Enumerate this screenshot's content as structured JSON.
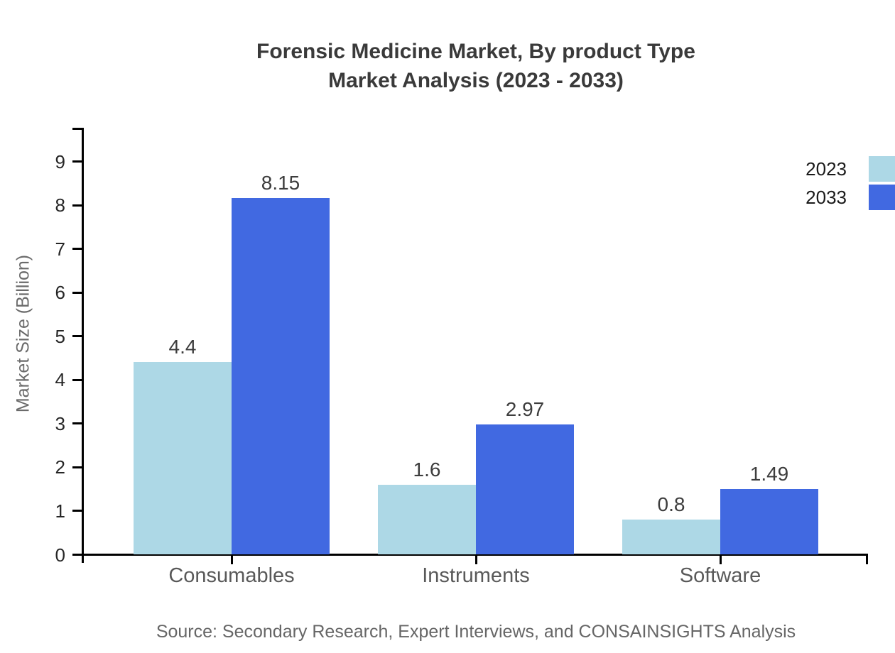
{
  "title": {
    "line1": "Forensic Medicine Market, By product Type",
    "line2": "Market Analysis (2023 - 2033)"
  },
  "source": "Source: Secondary Research, Expert Interviews, and CONSAINSIGHTS Analysis",
  "colors": {
    "series_2023": "#ADD8E6",
    "series_2033": "#4169E1",
    "axis": "#000000",
    "title_text": "#3a3a3a",
    "muted_text": "#666666"
  },
  "chart_data": {
    "type": "bar",
    "title": "Forensic Medicine Market, By product Type Market Analysis (2023 - 2033)",
    "categories": [
      "Consumables",
      "Instruments",
      "Software"
    ],
    "series": [
      {
        "name": "2023",
        "color": "#ADD8E6",
        "values": [
          4.4,
          1.6,
          0.8
        ]
      },
      {
        "name": "2033",
        "color": "#4169E1",
        "values": [
          8.15,
          2.97,
          1.49
        ]
      }
    ],
    "xlabel": "",
    "ylabel": "Market Size (Billion)",
    "yticks": [
      0,
      1,
      2,
      3,
      4,
      5,
      6,
      7,
      8,
      9
    ],
    "ylim": [
      0,
      9.78
    ],
    "grid": false,
    "legend_position": "top-right",
    "value_labels": [
      "4.4",
      "8.15",
      "1.6",
      "2.97",
      "0.8",
      "1.49"
    ]
  }
}
